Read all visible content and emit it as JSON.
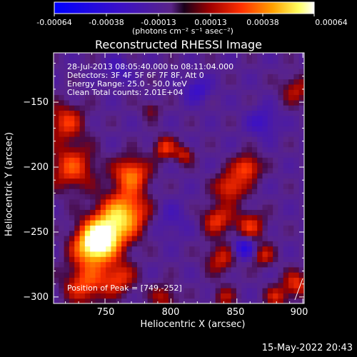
{
  "colorbar": {
    "tick_labels": [
      "-0.00064",
      "-0.00038",
      "-0.00013",
      "0.00013",
      "0.00038",
      "0.00064"
    ],
    "units": "(photons cm⁻² s⁻¹ asec⁻²)",
    "range": [
      -0.00064,
      0.00064
    ]
  },
  "info": {
    "time_range": "28-Jul-2013 08:05:40.000 to 08:11:04.000",
    "detectors": "Detectors: 3F 4F 5F 6F 7F 8F, Att 0",
    "energy": "Energy Range: 25.0 - 50.0 keV",
    "clean": "Clean    Total counts: 2.01E+04",
    "peak": "Position of Peak = [749,-252]"
  },
  "datestamp": "15-May-2022 20:43",
  "chart_data": {
    "type": "heatmap",
    "title": "Reconstructed RHESSI Image",
    "xlabel": "Heliocentric X (arcsec)",
    "ylabel": "Heliocentric Y (arcsec)",
    "xlim": [
      711,
      901
    ],
    "ylim": [
      -305,
      -112
    ],
    "xticks": [
      750,
      800,
      850,
      900
    ],
    "yticks": [
      -300,
      -250,
      -200,
      -150
    ],
    "x_tick_labels": [
      "750",
      "800",
      "850",
      "900"
    ],
    "y_tick_labels": [
      "−300",
      "−250",
      "−200",
      "−150"
    ],
    "peak": {
      "x": 749,
      "y": -252
    },
    "sources": [
      {
        "x": 749,
        "y": -252,
        "sigma": 11,
        "amp": 0.00064
      },
      {
        "x": 765,
        "y": -235,
        "sigma": 12,
        "amp": 0.00052
      },
      {
        "x": 740,
        "y": -262,
        "sigma": 10,
        "amp": 0.0005
      },
      {
        "x": 770,
        "y": -205,
        "sigma": 9,
        "amp": 0.00042
      },
      {
        "x": 725,
        "y": -200,
        "sigma": 12,
        "amp": 0.00034
      },
      {
        "x": 720,
        "y": -165,
        "sigma": 10,
        "amp": 0.0003
      },
      {
        "x": 735,
        "y": -290,
        "sigma": 11,
        "amp": 0.00034
      },
      {
        "x": 760,
        "y": -285,
        "sigma": 9,
        "amp": 0.0003
      },
      {
        "x": 845,
        "y": -215,
        "sigma": 8,
        "amp": 0.00034
      },
      {
        "x": 858,
        "y": -200,
        "sigma": 7,
        "amp": 0.00036
      },
      {
        "x": 835,
        "y": -240,
        "sigma": 8,
        "amp": 0.0003
      },
      {
        "x": 860,
        "y": -245,
        "sigma": 8,
        "amp": 0.00028
      },
      {
        "x": 838,
        "y": -270,
        "sigma": 8,
        "amp": 0.00026
      },
      {
        "x": 870,
        "y": -268,
        "sigma": 6,
        "amp": 0.00024
      },
      {
        "x": 795,
        "y": -185,
        "sigma": 6,
        "amp": 0.0003
      },
      {
        "x": 810,
        "y": -190,
        "sigma": 5,
        "amp": 0.00024
      },
      {
        "x": 895,
        "y": -290,
        "sigma": 7,
        "amp": 0.0003
      },
      {
        "x": 880,
        "y": -300,
        "sigma": 6,
        "amp": 0.00024
      },
      {
        "x": 795,
        "y": -300,
        "sigma": 7,
        "amp": 0.00022
      },
      {
        "x": 840,
        "y": -300,
        "sigma": 6,
        "amp": 0.0002
      },
      {
        "x": 895,
        "y": -140,
        "sigma": 8,
        "amp": 0.00022
      },
      {
        "x": 785,
        "y": -155,
        "sigma": 5,
        "amp": 0.00016
      },
      {
        "x": 820,
        "y": -140,
        "sigma": 7,
        "amp": -0.00022
      },
      {
        "x": 855,
        "y": -262,
        "sigma": 6,
        "amp": -0.00034
      },
      {
        "x": 870,
        "y": -165,
        "sigma": 8,
        "amp": -0.0002
      },
      {
        "x": 800,
        "y": -240,
        "sigma": 10,
        "amp": -0.00012
      },
      {
        "x": 760,
        "y": -125,
        "sigma": 7,
        "amp": -0.00016
      }
    ]
  }
}
